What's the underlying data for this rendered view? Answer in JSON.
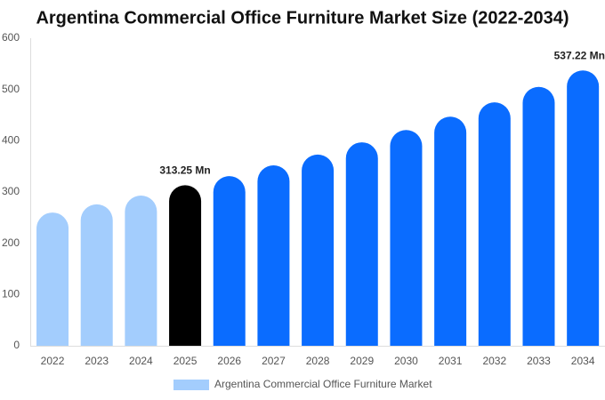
{
  "chart_data": {
    "type": "bar",
    "title": "Argentina Commercial Office Furniture Market Size (2022-2034)",
    "categories": [
      "2022",
      "2023",
      "2024",
      "2025",
      "2026",
      "2027",
      "2028",
      "2029",
      "2030",
      "2031",
      "2032",
      "2033",
      "2034"
    ],
    "series": [
      {
        "name": "Argentina Commercial Office Furniture Market",
        "color": "#a3cdfd",
        "values": [
          260,
          276,
          293,
          313.25,
          331,
          352,
          373,
          397,
          421,
          447,
          475,
          505,
          537.22
        ],
        "value_labels": [
          null,
          null,
          null,
          "313.25 Mn",
          null,
          null,
          null,
          null,
          null,
          null,
          null,
          null,
          "537.22 Mn"
        ],
        "colors": [
          "#a3cdfd",
          "#a3cdfd",
          "#a3cdfd",
          "#000000",
          "#0a6cff",
          "#0a6cff",
          "#0a6cff",
          "#0a6cff",
          "#0a6cff",
          "#0a6cff",
          "#0a6cff",
          "#0a6cff",
          "#0a6cff"
        ]
      }
    ],
    "ylim": [
      0,
      600
    ],
    "yticks": [
      0,
      100,
      200,
      300,
      400,
      500,
      600
    ],
    "grid": false
  }
}
